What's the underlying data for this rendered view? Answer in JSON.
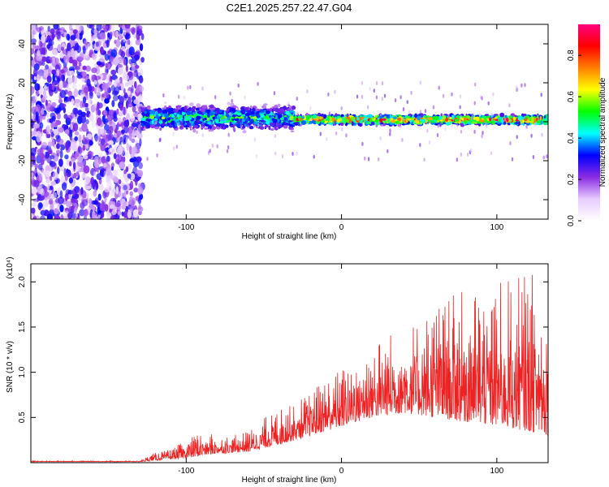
{
  "title": "C2E1.2025.257.22.47.G04",
  "colorbar": {
    "label": "Normalized spectral amplitude",
    "ticks": [
      "0.0",
      "0.2",
      "0.4",
      "0.6",
      "0.8"
    ],
    "stops": [
      "#ffffff",
      "#e6ccff",
      "#8a2be2",
      "#0000ff",
      "#00ffff",
      "#00ff00",
      "#ffff00",
      "#ff7f00",
      "#ff0000",
      "#ff0080"
    ]
  },
  "chart_data": [
    {
      "type": "heatmap",
      "name": "spectrogram",
      "title": "C2E1.2025.257.22.47.G04",
      "xlabel": "Height of straight line (km)",
      "ylabel": "Frequency (Hz)",
      "xlim": [
        -200,
        133
      ],
      "ylim": [
        -50,
        50
      ],
      "xticks": [
        {
          "value": -100,
          "label": "-100"
        },
        {
          "value": 0,
          "label": "0"
        },
        {
          "value": 100,
          "label": "100"
        }
      ],
      "yticks": [
        {
          "value": -40,
          "label": "-40"
        },
        {
          "value": -20,
          "label": "-20"
        },
        {
          "value": 0,
          "label": "0"
        },
        {
          "value": 20,
          "label": "20"
        },
        {
          "value": 40,
          "label": "40"
        }
      ],
      "zlabel": "Normalized spectral amplitude",
      "zlim": [
        0.0,
        0.95
      ],
      "regions": [
        {
          "x_from": -200,
          "x_to": -128,
          "freq_from": -50,
          "freq_to": 50,
          "amplitude": 0.3,
          "description": "broadband noise"
        },
        {
          "x_from": -128,
          "x_to": -30,
          "freq_center": 2,
          "freq_halfwidth": 8,
          "amplitude": 0.55
        },
        {
          "x_from": -30,
          "x_to": 133,
          "freq_center": 1,
          "freq_halfwidth": 3,
          "amplitude": 0.85
        }
      ]
    },
    {
      "type": "line",
      "name": "snr",
      "xlabel": "Height of straight line (km)",
      "ylabel": "SNR (10 * v/v)",
      "yscale_label": "(x10⁴)",
      "xlim": [
        -200,
        133
      ],
      "ylim": [
        0,
        2.2
      ],
      "xticks": [
        {
          "value": -100,
          "label": "-100"
        },
        {
          "value": 0,
          "label": "0"
        },
        {
          "value": 100,
          "label": "100"
        }
      ],
      "yticks": [
        {
          "value": 0.5,
          "label": "0.5"
        },
        {
          "value": 1.0,
          "label": "1.0"
        },
        {
          "value": 1.5,
          "label": "1.5"
        },
        {
          "value": 2.0,
          "label": "2.0"
        }
      ],
      "color": "#ee2222",
      "envelope": {
        "x": [
          -200,
          -130,
          -122,
          -110,
          -100,
          -90,
          -80,
          -70,
          -60,
          -50,
          -40,
          -30,
          -20,
          -10,
          0,
          10,
          20,
          30,
          40,
          50,
          60,
          70,
          80,
          90,
          100,
          110,
          120,
          133
        ],
        "y": [
          0.02,
          0.02,
          0.1,
          0.15,
          0.25,
          0.35,
          0.3,
          0.3,
          0.35,
          0.5,
          0.6,
          0.65,
          0.8,
          0.95,
          1.05,
          1.2,
          1.35,
          1.45,
          1.55,
          1.6,
          1.75,
          1.85,
          1.9,
          1.95,
          2.0,
          2.05,
          2.1,
          2.15
        ]
      },
      "baseline": {
        "x": [
          -200,
          -130,
          -100,
          -80,
          -60,
          -40,
          -20,
          0,
          20,
          40,
          60,
          80,
          100,
          120,
          133
        ],
        "y": [
          0.01,
          0.01,
          0.05,
          0.1,
          0.12,
          0.2,
          0.3,
          0.4,
          0.5,
          0.55,
          0.5,
          0.45,
          0.4,
          0.35,
          0.3
        ]
      }
    }
  ]
}
